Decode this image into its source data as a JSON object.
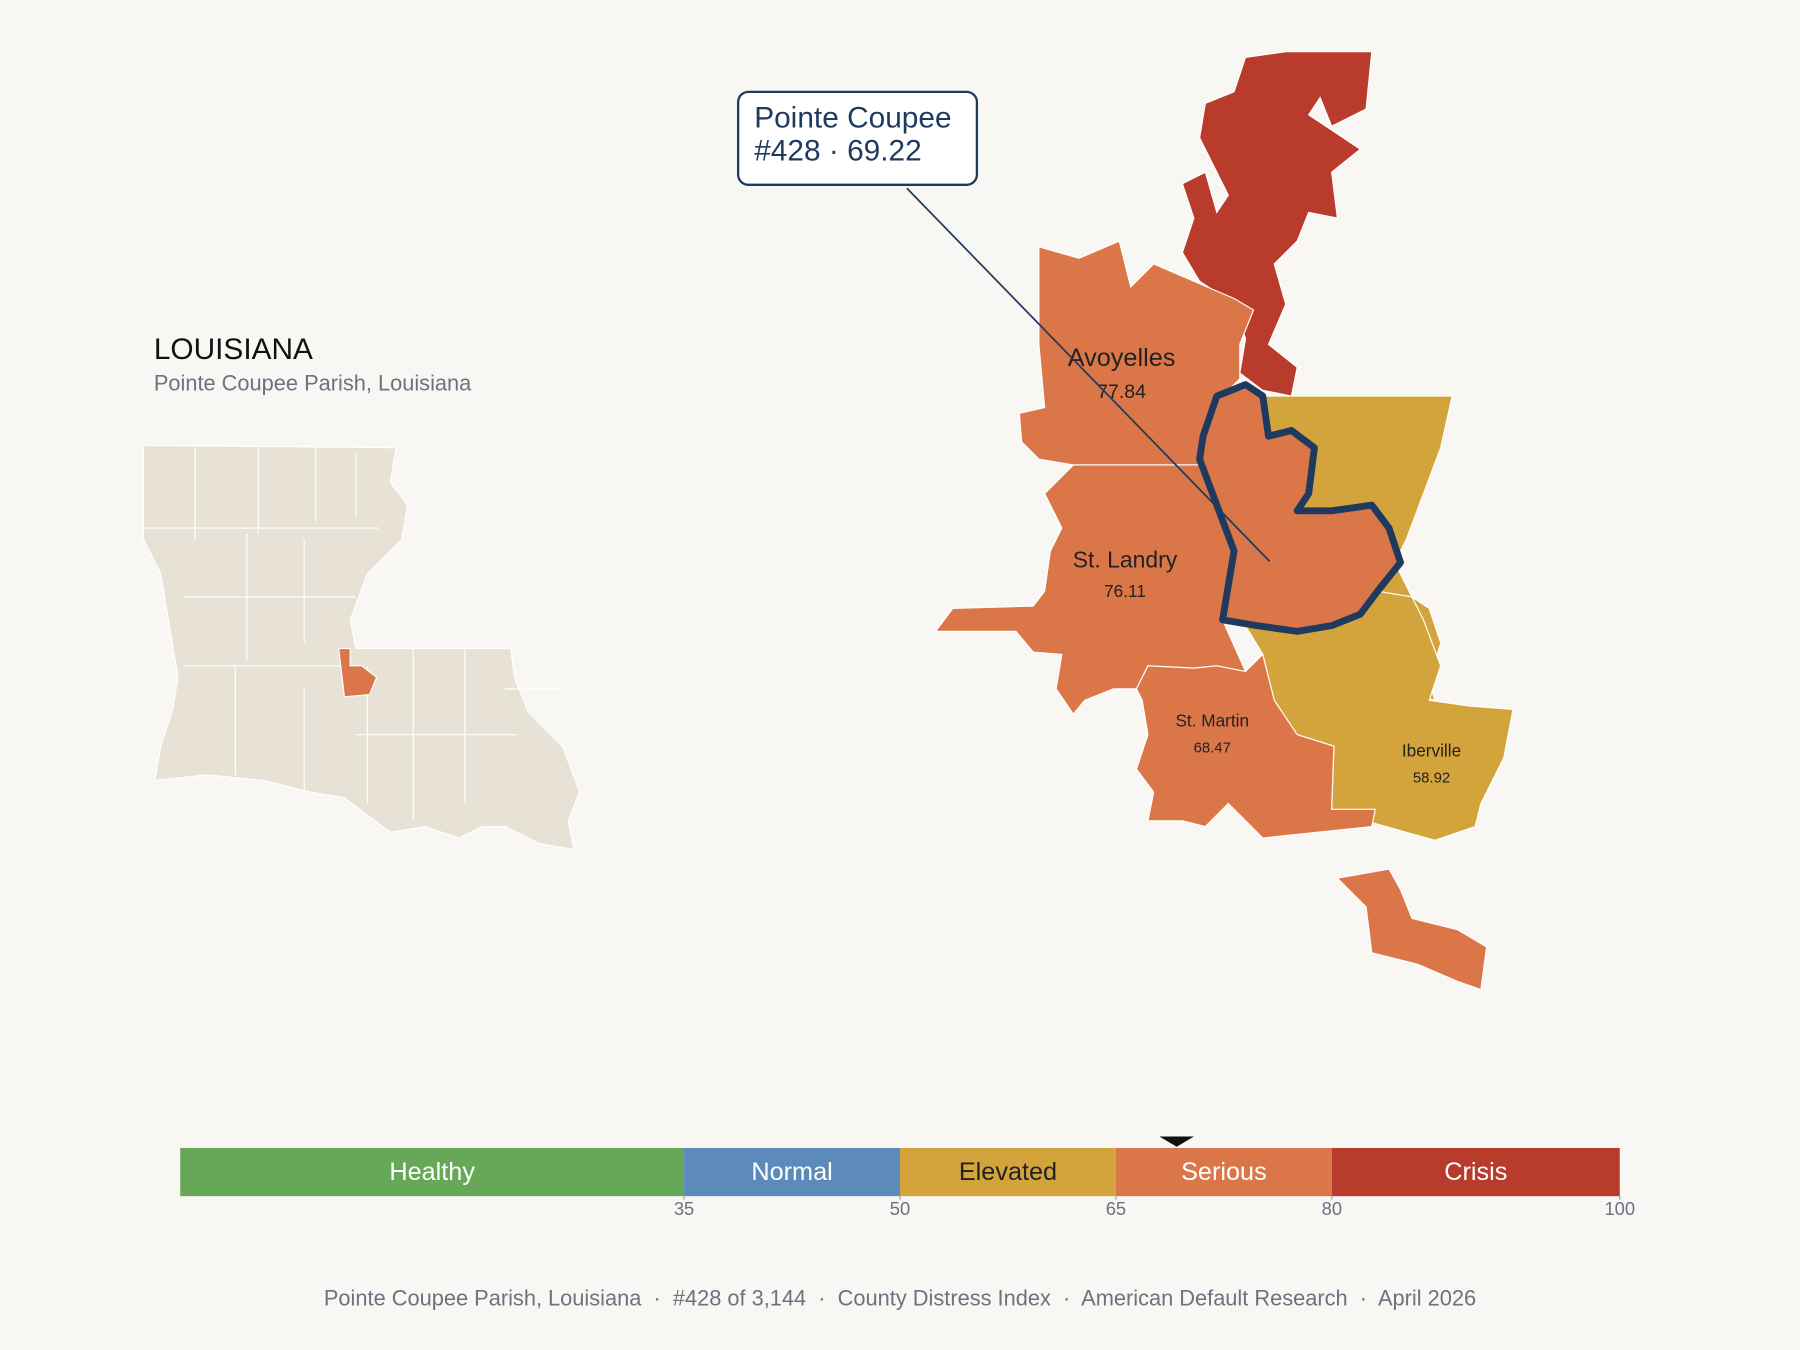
{
  "header": {
    "title": "LOUISIANA",
    "subtitle": "Pointe Coupee Parish, Louisiana"
  },
  "callout": {
    "name": "Pointe Coupee",
    "text": "#428 · 69.22",
    "score": 69.22
  },
  "parishes": [
    {
      "name": "Avoyelles",
      "value": 77.84
    },
    {
      "name": "St. Landry",
      "value": 76.11
    },
    {
      "name": "St. Martin",
      "value": 68.47
    },
    {
      "name": "Iberville",
      "value": 58.92
    }
  ],
  "legend": {
    "xlim": [
      0,
      100
    ],
    "xticks": [
      35,
      50,
      65,
      80,
      100
    ],
    "bands": [
      {
        "name": "Healthy",
        "color": "#67a858"
      },
      {
        "name": "Normal",
        "color": "#5b8abb"
      },
      {
        "name": "Elevated",
        "color": "#d4a43c"
      },
      {
        "name": "Serious",
        "color": "#db7649"
      },
      {
        "name": "Crisis",
        "color": "#b93b2b"
      }
    ]
  },
  "footer": "Pointe Coupee Parish, Louisiana  ·  #428 of 3,144  ·  County Distress Index  ·  American Default Research  ·  April 2026"
}
